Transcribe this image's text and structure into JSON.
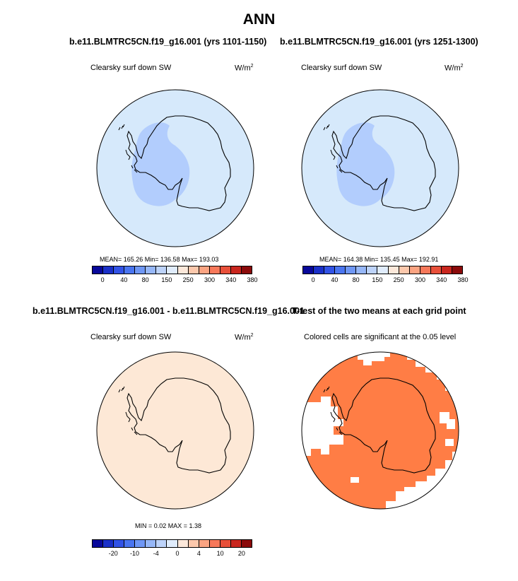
{
  "main_title": "ANN",
  "panel1": {
    "title": "b.e11.BLMTRC5CN.f19_g16.001 (yrs 1101-1150)",
    "label": "Clearsky surf down SW",
    "units": "W/m",
    "units_sup": "2",
    "stats": "MEAN= 165.26  Min= 136.58  Max= 193.03",
    "ocean_color": "#d6e9fb",
    "anomaly_color": "#b2cdfd"
  },
  "panel2": {
    "title": "b.e11.BLMTRC5CN.f19_g16.001 (yrs 1251-1300)",
    "label": "Clearsky surf down SW",
    "units": "W/m",
    "units_sup": "2",
    "stats": "MEAN= 164.38  Min= 135.45  Max= 192.91",
    "ocean_color": "#d6e9fb",
    "anomaly_color": "#b2cdfd"
  },
  "panel3": {
    "title": "b.e11.BLMTRC5CN.f19_g16.001 - b.e11.BLMTRC5CN.f19_g16.001",
    "label": "Clearsky surf down SW",
    "units": "W/m",
    "units_sup": "2",
    "stats": "MIN =  0.02 MAX =  1.38",
    "fill_color": "#fde8d6"
  },
  "panel4": {
    "title": "T-test of the two means at each grid point",
    "label": "Colored cells are significant at the 0.05 level",
    "fill_color": "#ff7d45"
  },
  "colorbar_abs": {
    "colors": [
      "#08089a",
      "#1a30c8",
      "#3253e6",
      "#4a75f0",
      "#6f97f5",
      "#96b7f8",
      "#bdd3fa",
      "#e0ecfc",
      "#fce8da",
      "#fcc8ac",
      "#fba482",
      "#f7785a",
      "#e8503a",
      "#c9261e",
      "#8b0a0a"
    ],
    "ticks": [
      "0",
      "40",
      "80",
      "150",
      "250",
      "300",
      "340",
      "380"
    ]
  },
  "colorbar_diff": {
    "colors": [
      "#08089a",
      "#1a30c8",
      "#3253e6",
      "#4a75f0",
      "#6f97f5",
      "#96b7f8",
      "#bdd3fa",
      "#e0ecfc",
      "#fce8da",
      "#fcc8ac",
      "#fba482",
      "#f7785a",
      "#e8503a",
      "#c9261e",
      "#8b0a0a"
    ],
    "ticks": [
      "-20",
      "-10",
      "-4",
      "0",
      "4",
      "10",
      "20"
    ]
  }
}
